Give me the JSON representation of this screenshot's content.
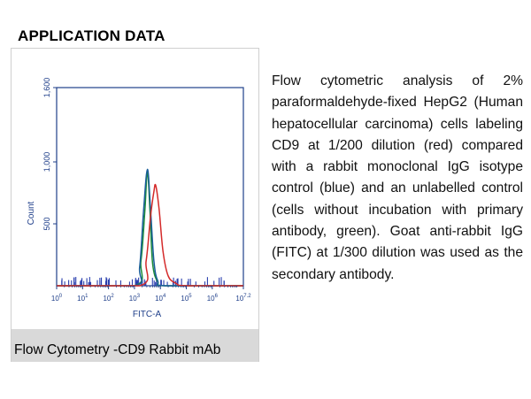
{
  "section": {
    "title": "APPLICATION DATA"
  },
  "figure": {
    "caption": "Flow Cytometry -CD9 Rabbit mAb"
  },
  "description": "Flow cytometric analysis of 2% paraformaldehyde-fixed HepG2 (Human hepatocellular carcinoma) cells labeling CD9 at 1/200 dilution (red) compared with a rabbit monoclonal IgG isotype control (blue) and an unlabelled control (cells without incubation with primary antibody, green). Goat anti-rabbit IgG (FITC) at 1/300 dilution was used as the secondary antibody.",
  "colors": {
    "axis": "#1f3f8a",
    "red": "#d42a2a",
    "blue": "#1a5e9a",
    "green": "#1e8c3a"
  },
  "chart_data": {
    "type": "line",
    "title": "",
    "xlabel": "FITC-A",
    "ylabel": "Count",
    "xscale": "log",
    "xlim": [
      0,
      7.2
    ],
    "ylim": [
      0,
      1600
    ],
    "yticks": [
      500,
      1000,
      1600
    ],
    "ytick_labels": [
      "500",
      "1,000",
      "1,600"
    ],
    "xticks": [
      {
        "base": "10",
        "exp": "0"
      },
      {
        "base": "10",
        "exp": "1"
      },
      {
        "base": "10",
        "exp": "2"
      },
      {
        "base": "10",
        "exp": "3"
      },
      {
        "base": "10",
        "exp": "4"
      },
      {
        "base": "10",
        "exp": "5"
      },
      {
        "base": "10",
        "exp": "6"
      },
      {
        "base": "10",
        "exp": "7.2"
      }
    ],
    "series": [
      {
        "name": "Unlabelled control",
        "color": "green",
        "x": [
          0,
          3.0,
          3.25,
          3.4,
          3.5,
          3.6,
          3.7,
          3.9,
          4.2,
          7.2
        ],
        "y": [
          0,
          0,
          200,
          600,
          920,
          600,
          180,
          30,
          0,
          0
        ]
      },
      {
        "name": "Isotype control",
        "color": "blue",
        "x": [
          0,
          3.0,
          3.2,
          3.35,
          3.5,
          3.62,
          3.75,
          3.9,
          4.2,
          7.2
        ],
        "y": [
          0,
          0,
          150,
          600,
          940,
          620,
          200,
          40,
          0,
          0
        ]
      },
      {
        "name": "CD9",
        "color": "red",
        "x": [
          0,
          3.2,
          3.45,
          3.62,
          3.75,
          3.82,
          3.95,
          4.1,
          4.3,
          4.6,
          5.0,
          7.2
        ],
        "y": [
          0,
          0,
          200,
          560,
          760,
          810,
          620,
          280,
          80,
          20,
          0,
          0
        ]
      }
    ]
  }
}
